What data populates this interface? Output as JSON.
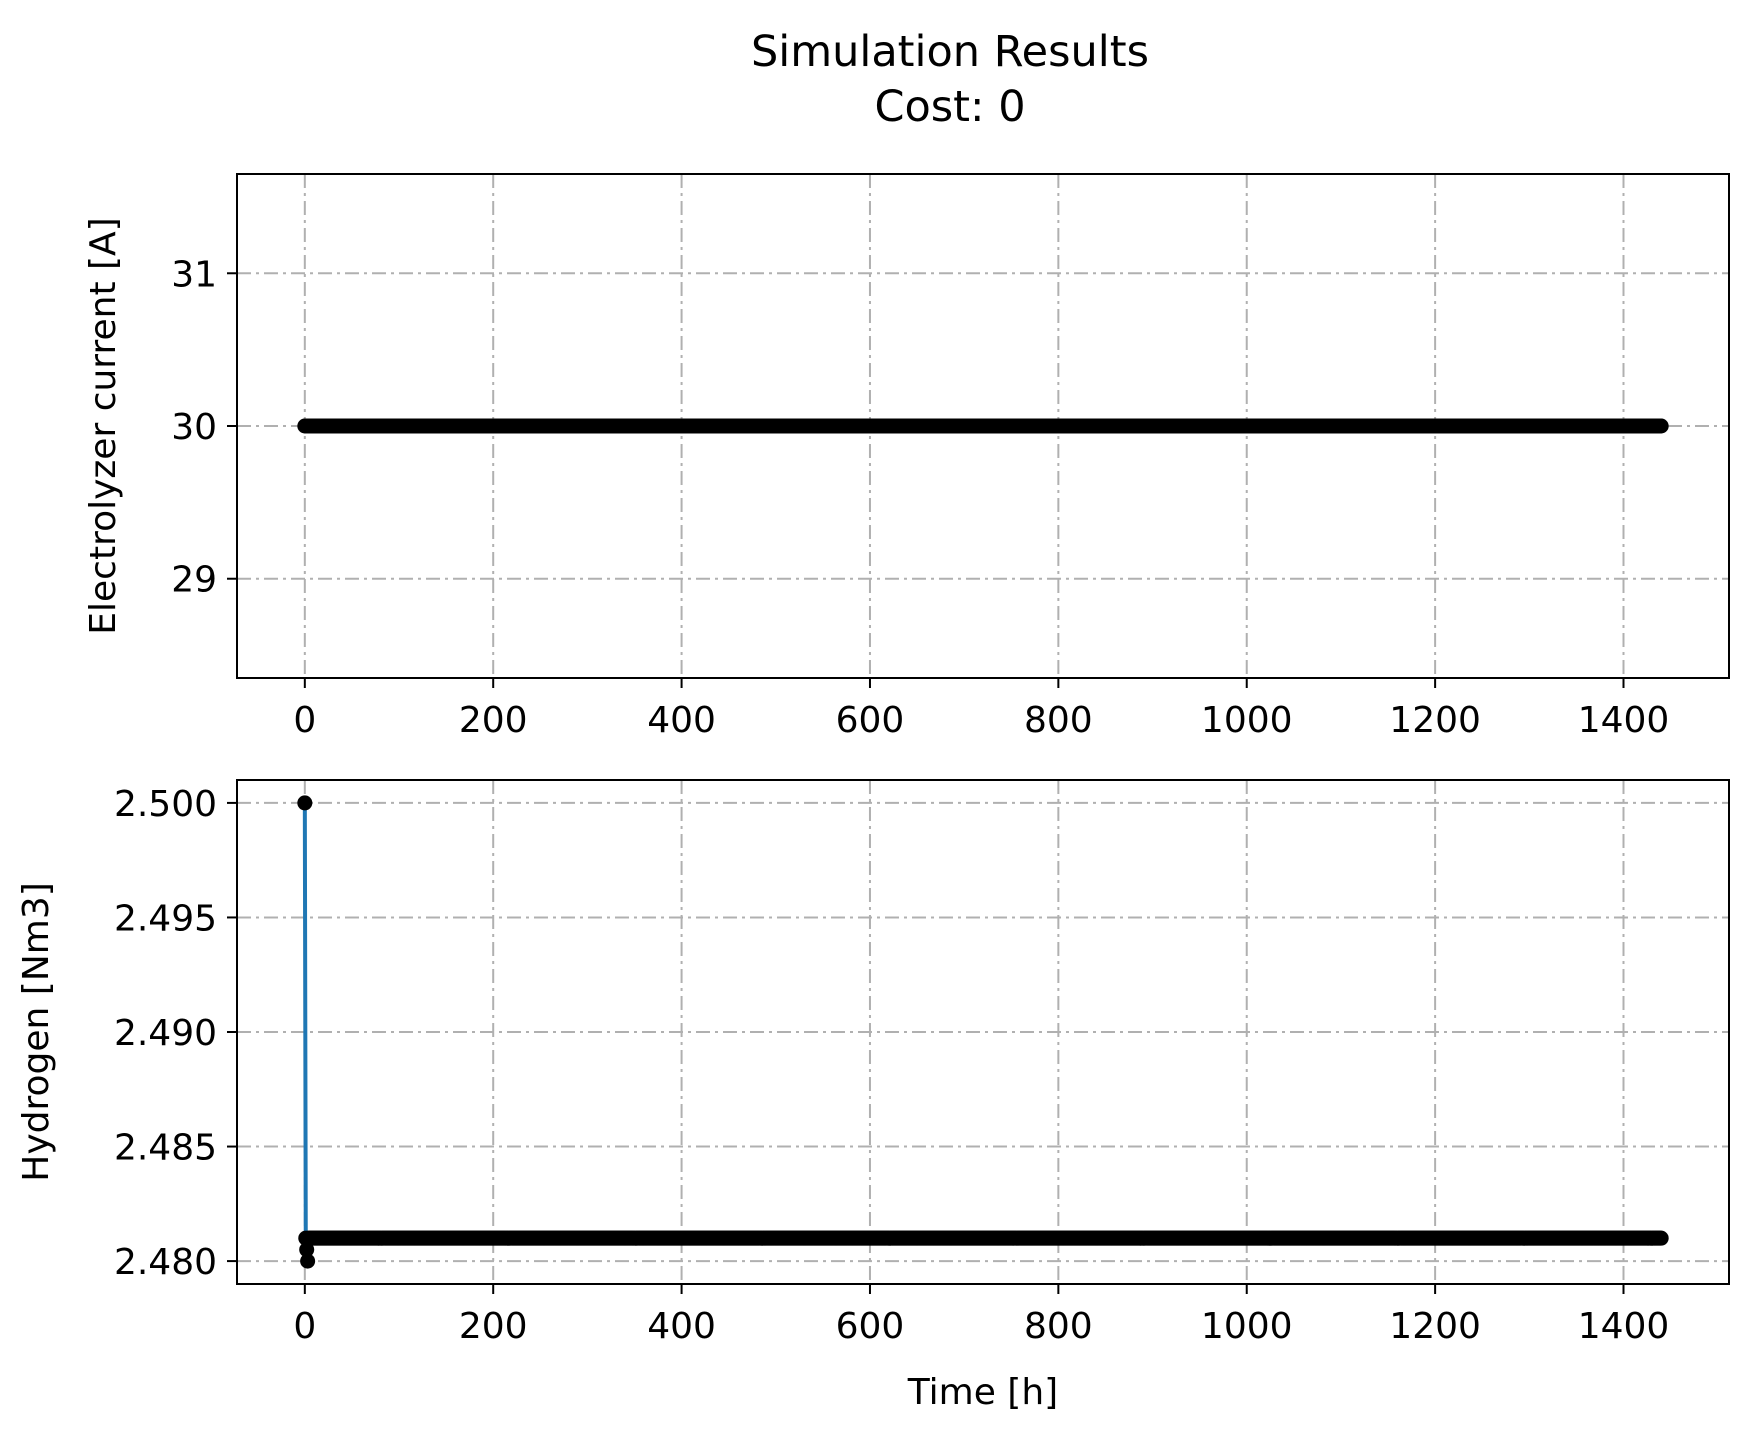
{
  "figure": {
    "title_line1": "Simulation Results",
    "title_line2": "Cost: 0"
  },
  "chart_data": [
    {
      "type": "line",
      "xlabel": "",
      "ylabel": "Electrolyzer current [A]",
      "xlim": [
        -72,
        1512
      ],
      "ylim": [
        28.35,
        31.65
      ],
      "xticks": [
        0,
        200,
        400,
        600,
        800,
        1000,
        1200,
        1400
      ],
      "xtick_labels": [
        "0",
        "200",
        "400",
        "600",
        "800",
        "1000",
        "1200",
        "1400"
      ],
      "yticks": [
        29,
        30,
        31
      ],
      "ytick_labels": [
        "29",
        "30",
        "31"
      ],
      "grid": true,
      "grid_style": "dash-dot",
      "grid_color": "#b0b0b0",
      "series": [
        {
          "line_color": "#1f77b4",
          "marker_color": "#000000",
          "marker": "dot",
          "x_start": 0,
          "x_end": 1440,
          "x_step": 1,
          "values": [
            [
              0,
              30
            ],
            [
              1440,
              30
            ]
          ]
        }
      ]
    },
    {
      "type": "line",
      "xlabel": "Time [h]",
      "ylabel": "Hydrogen [Nm3]",
      "xlim": [
        -72,
        1512
      ],
      "ylim": [
        2.479,
        2.501
      ],
      "xticks": [
        0,
        200,
        400,
        600,
        800,
        1000,
        1200,
        1400
      ],
      "xtick_labels": [
        "0",
        "200",
        "400",
        "600",
        "800",
        "1000",
        "1200",
        "1400"
      ],
      "yticks": [
        2.48,
        2.485,
        2.49,
        2.495,
        2.5
      ],
      "ytick_labels": [
        "2.480",
        "2.485",
        "2.490",
        "2.495",
        "2.500"
      ],
      "grid": true,
      "grid_style": "dash-dot",
      "grid_color": "#b0b0b0",
      "series": [
        {
          "line_color": "#1f77b4",
          "marker_color": "#000000",
          "marker": "dot",
          "values": [
            [
              0,
              2.5
            ],
            [
              1,
              2.481
            ],
            [
              3,
              2.48
            ],
            [
              4,
              2.481
            ],
            [
              1440,
              2.481
            ]
          ]
        }
      ]
    }
  ]
}
